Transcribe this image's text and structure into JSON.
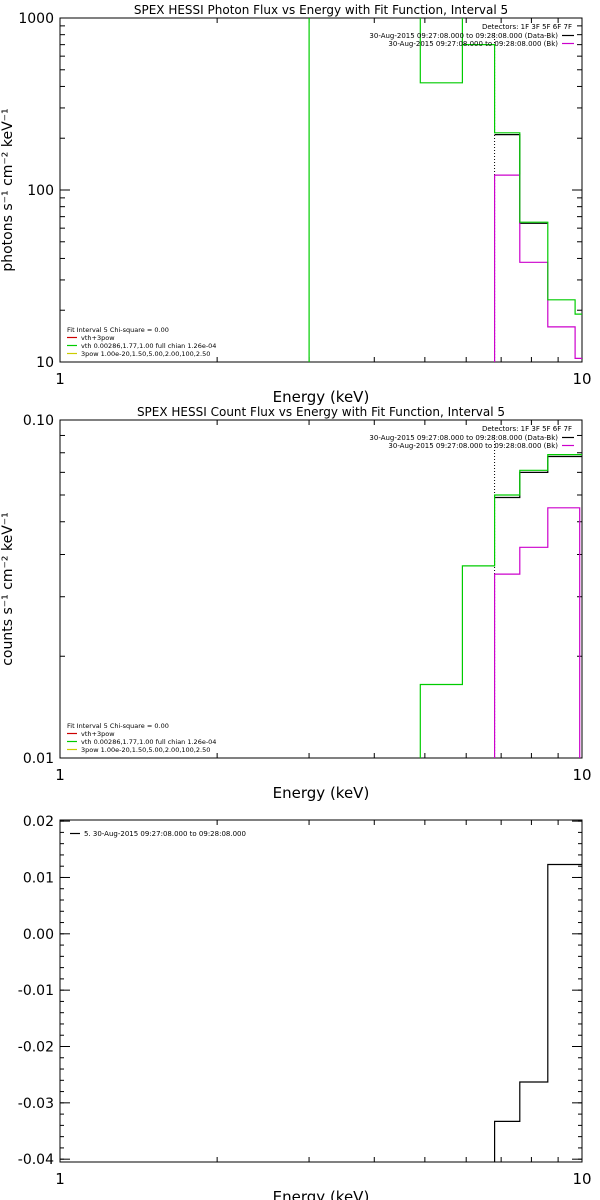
{
  "chart_data": [
    {
      "type": "line",
      "title": "SPEX HESSI Photon Flux vs Energy with Fit Function, Interval 5",
      "xlabel": "Energy (keV)",
      "ylabel": "photons s⁻¹ cm⁻² keV⁻¹",
      "xscale": "log",
      "yscale": "log",
      "xlim": [
        1,
        10
      ],
      "ylim": [
        10,
        1000
      ],
      "xticks": [
        {
          "value": 1,
          "label": "1"
        },
        {
          "value": 10,
          "label": "10"
        }
      ],
      "yticks": [
        {
          "value": 10,
          "label": "10"
        },
        {
          "value": 100,
          "label": "100"
        },
        {
          "value": 1000,
          "label": "1000"
        }
      ],
      "grid": false,
      "detectors_text": "Detectors: 1F 3F 5F 6F 7F",
      "top_legend": [
        {
          "text": "30-Aug-2015 09:27:08.000 to 09:28:08.000 (Data-Bk)",
          "color": "#000000"
        },
        {
          "text": "30-Aug-2015 09:27:08.000 to 09:28:08.000 (Bk)",
          "color": "#cc00cc"
        }
      ],
      "bottom_legend": [
        {
          "text": "Fit Interval 5   Chi-square = 0.00",
          "color": "#000000"
        },
        {
          "text": "vth+3pow",
          "color": "#cc0000"
        },
        {
          "text": "vth 0.00286,1.77,1.00  full chian 1.26e-04",
          "color": "#00cc00"
        },
        {
          "text": "3pow 1.00e-20,1.50,5.00,2.00,100,2.50",
          "color": "#cccc00"
        }
      ],
      "marker_line_x": 6.8,
      "series": [
        {
          "color": "#000000",
          "style": "step",
          "points": [
            [
              6.8,
              210
            ],
            [
              7.6,
              210
            ],
            [
              7.6,
              64
            ],
            [
              8.6,
              64
            ]
          ]
        },
        {
          "color": "#cc00cc",
          "style": "step",
          "points": [
            [
              6.8,
              8
            ],
            [
              6.8,
              122
            ],
            [
              7.6,
              122
            ],
            [
              7.6,
              38
            ],
            [
              8.6,
              38
            ],
            [
              8.6,
              16
            ],
            [
              9.7,
              16
            ],
            [
              9.7,
              10.5
            ],
            [
              10,
              10.5
            ]
          ]
        },
        {
          "color": "#00cc00",
          "style": "step",
          "points": [
            [
              3.0,
              8
            ],
            [
              3.0,
              1100
            ],
            [
              4.9,
              1100
            ],
            [
              4.9,
              420
            ],
            [
              5.9,
              420
            ],
            [
              5.9,
              1100
            ],
            [
              5.9,
              700
            ],
            [
              6.8,
              700
            ],
            [
              6.8,
              215
            ],
            [
              7.6,
              215
            ],
            [
              7.6,
              65
            ],
            [
              8.6,
              65
            ],
            [
              8.6,
              23
            ],
            [
              9.7,
              23
            ],
            [
              9.7,
              19
            ],
            [
              10,
              19
            ]
          ]
        }
      ]
    },
    {
      "type": "line",
      "title": "SPEX HESSI Count Flux vs Energy with Fit Function, Interval 5",
      "xlabel": "Energy (keV)",
      "ylabel": "counts s⁻¹ cm⁻² keV⁻¹",
      "xscale": "log",
      "yscale": "log",
      "xlim": [
        1,
        10
      ],
      "ylim": [
        0.01,
        0.1
      ],
      "xticks": [
        {
          "value": 1,
          "label": "1"
        },
        {
          "value": 10,
          "label": "10"
        }
      ],
      "yticks": [
        {
          "value": 0.01,
          "label": "0.01"
        },
        {
          "value": 0.1,
          "label": "0.10"
        }
      ],
      "grid": false,
      "detectors_text": "Detectors: 1F 3F 5F 6F 7F",
      "top_legend": [
        {
          "text": "30-Aug-2015 09:27:08.000 to 09:28:08.000 (Data-Bk)",
          "color": "#000000"
        },
        {
          "text": "30-Aug-2015 09:27:08.000 to 09:28:08.000 (Bk)",
          "color": "#cc00cc"
        }
      ],
      "bottom_legend": [
        {
          "text": "Fit Interval 5   Chi-square = 0.00",
          "color": "#000000"
        },
        {
          "text": "vth+3pow",
          "color": "#cc0000"
        },
        {
          "text": "vth 0.00286,1.77,1.00  full chian 1.26e-04",
          "color": "#00cc00"
        },
        {
          "text": "3pow 1.00e-20,1.50,5.00,2.00,100,2.50",
          "color": "#cccc00"
        }
      ],
      "marker_line_x": 6.8,
      "series": [
        {
          "color": "#000000",
          "style": "step",
          "points": [
            [
              6.8,
              0.059
            ],
            [
              7.6,
              0.059
            ],
            [
              7.6,
              0.07
            ],
            [
              8.6,
              0.07
            ],
            [
              8.6,
              0.078
            ],
            [
              10,
              0.078
            ]
          ]
        },
        {
          "color": "#cc00cc",
          "style": "step",
          "points": [
            [
              6.8,
              0.0095
            ],
            [
              6.8,
              0.035
            ],
            [
              7.6,
              0.035
            ],
            [
              7.6,
              0.042
            ],
            [
              8.6,
              0.042
            ],
            [
              8.6,
              0.055
            ],
            [
              9.9,
              0.055
            ],
            [
              9.9,
              0.0095
            ]
          ]
        },
        {
          "color": "#00cc00",
          "style": "step",
          "points": [
            [
              4.9,
              0.0095
            ],
            [
              4.9,
              0.0165
            ],
            [
              5.9,
              0.0165
            ],
            [
              5.9,
              0.037
            ],
            [
              6.8,
              0.037
            ],
            [
              6.8,
              0.06
            ],
            [
              7.6,
              0.06
            ],
            [
              7.6,
              0.071
            ],
            [
              8.6,
              0.071
            ],
            [
              8.6,
              0.079
            ],
            [
              10,
              0.079
            ]
          ]
        }
      ]
    },
    {
      "type": "line",
      "title": "",
      "xlabel": "Energy (keV)",
      "ylabel": "",
      "xscale": "log",
      "yscale": "linear",
      "xlim": [
        1,
        10
      ],
      "ylim": [
        -0.0405,
        0.0202
      ],
      "xticks": [
        {
          "value": 1,
          "label": "1"
        },
        {
          "value": 10,
          "label": "10"
        }
      ],
      "yticks": [
        {
          "value": 0.02,
          "label": "0.02"
        },
        {
          "value": 0.01,
          "label": "0.01"
        },
        {
          "value": 0.0,
          "label": "0.00"
        },
        {
          "value": -0.01,
          "label": "-0.01"
        },
        {
          "value": -0.02,
          "label": "-0.02"
        },
        {
          "value": -0.03,
          "label": "-0.03"
        },
        {
          "value": -0.04,
          "label": "-0.04"
        }
      ],
      "grid": false,
      "legend": [
        {
          "text": "5. 30-Aug-2015 09:27:08.000 to 09:28:08.000",
          "color": "#000000"
        }
      ],
      "series": [
        {
          "color": "#000000",
          "style": "step",
          "points": [
            [
              6.8,
              -0.0415
            ],
            [
              6.8,
              -0.0333
            ],
            [
              7.6,
              -0.0333
            ],
            [
              7.6,
              -0.0263
            ],
            [
              8.6,
              -0.0263
            ],
            [
              8.6,
              0.0123
            ],
            [
              10,
              0.0123
            ]
          ]
        }
      ]
    }
  ]
}
